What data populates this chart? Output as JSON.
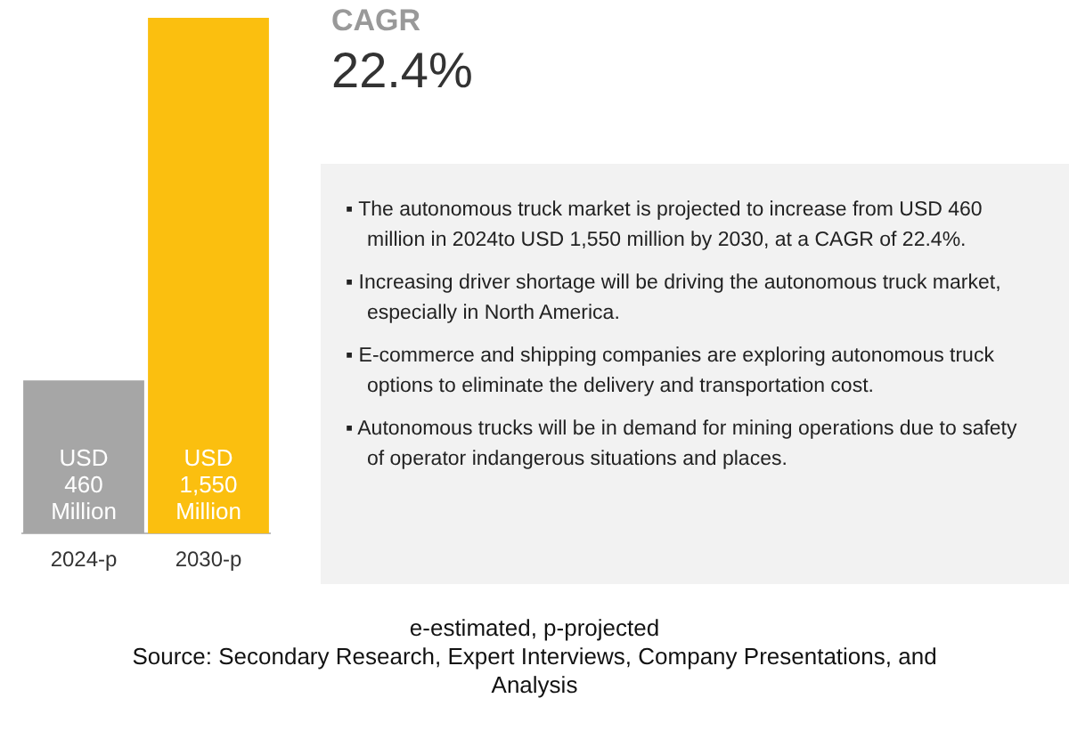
{
  "chart_data": {
    "type": "bar",
    "categories": [
      "2024-p",
      "2030-p"
    ],
    "values": [
      460,
      1550
    ],
    "colors": [
      "#a6a6a6",
      "#fbbf0f"
    ],
    "value_labels": [
      "USD 460 Million",
      "USD 1,550 Million"
    ],
    "legend": false,
    "grid": false,
    "annotations": [
      "CAGR",
      "22.4%",
      "▪ The autonomous truck market is projected to increase from USD 460 million in 2024to USD 1,550 million by 2030, at a CAGR of 22.4%.",
      "▪ Increasing driver shortage will be driving the autonomous truck market, especially in North America.",
      "▪ E-commerce and shipping companies are exploring autonomous truck options to eliminate the delivery and transportation cost.",
      "▪ Autonomous trucks will be in demand for mining operations due to safety of operator indangerous situations and places.",
      "e-estimated, p-projected",
      "Source: Secondary Research, Expert Interviews, Company Presentations, and Analysis"
    ]
  }
}
